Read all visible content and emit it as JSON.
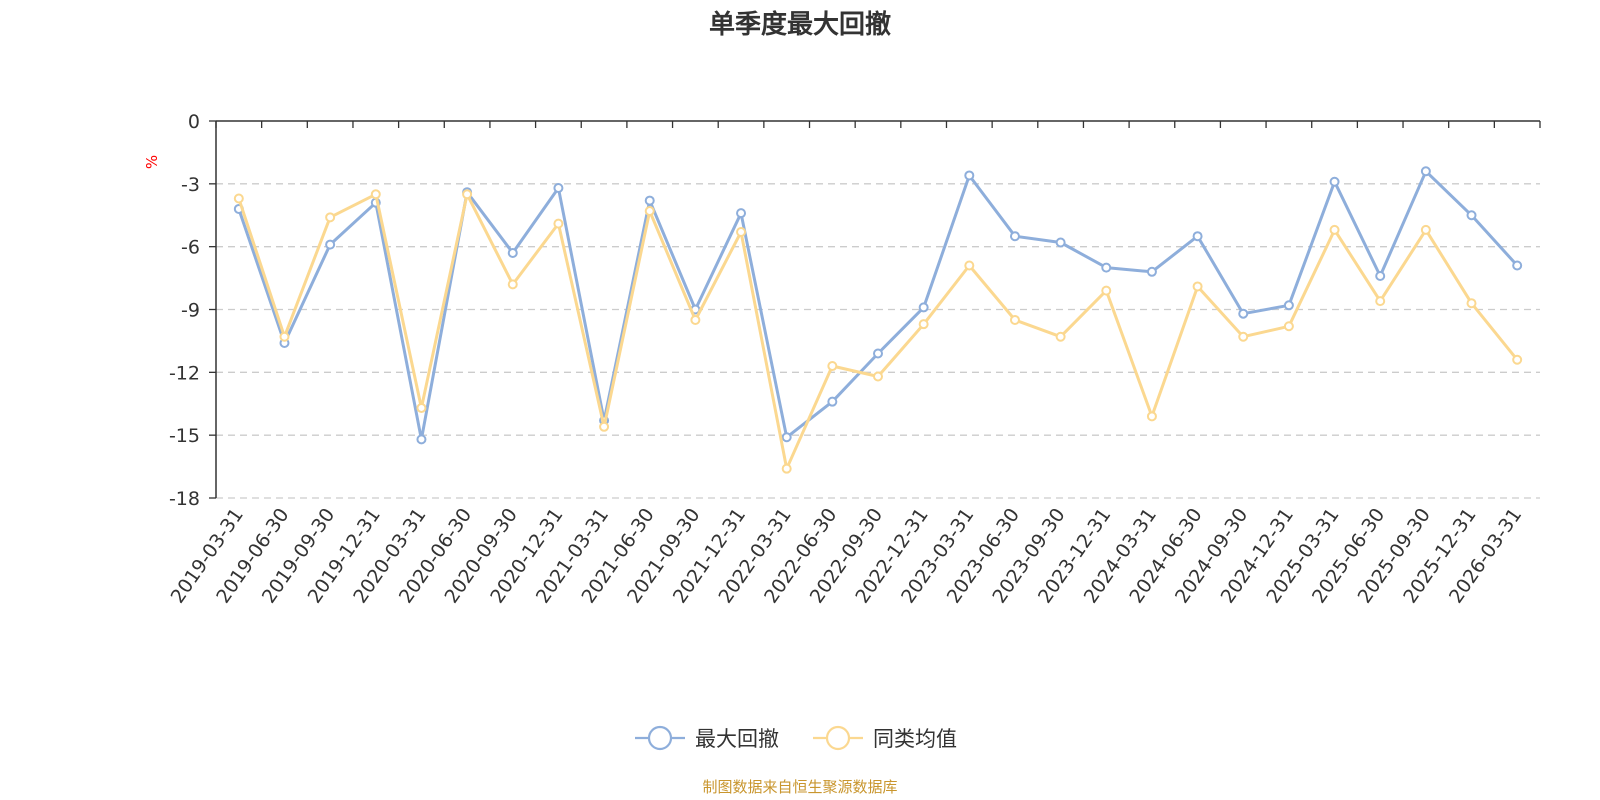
{
  "chart_data": {
    "type": "line",
    "title": "单季度最大回撤",
    "ylabel": "%",
    "xlabel": "",
    "ylim": [
      -18,
      0
    ],
    "yticks": [
      0,
      -3,
      -6,
      -9,
      -12,
      -15,
      -18
    ],
    "grid": true,
    "legend_position": "bottom-center",
    "categories": [
      "2019-03-31",
      "2019-06-30",
      "2019-09-30",
      "2019-12-31",
      "2020-03-31",
      "2020-06-30",
      "2020-09-30",
      "2020-12-31",
      "2021-03-31",
      "2021-06-30",
      "2021-09-30",
      "2021-12-31",
      "2022-03-31",
      "2022-06-30",
      "2022-09-30",
      "2022-12-31",
      "2023-03-31",
      "2023-06-30",
      "2023-09-30",
      "2023-12-31",
      "2024-03-31",
      "2024-06-30",
      "2024-09-30",
      "2024-12-31",
      "2025-03-31",
      "2025-06-30",
      "2025-09-30",
      "2025-12-31",
      "2026-03-31"
    ],
    "series": [
      {
        "name": "最大回撤",
        "color": "#8eaedb",
        "values": [
          -4.2,
          -10.6,
          -5.9,
          -3.9,
          -15.2,
          -3.4,
          -6.3,
          -3.2,
          -14.3,
          -3.8,
          -9.0,
          -4.4,
          -15.1,
          -13.4,
          -11.1,
          -8.9,
          -2.6,
          -5.5,
          -5.8,
          -7.0,
          -7.2,
          -5.5,
          -9.2,
          -8.8,
          -2.9,
          -7.4,
          -2.4,
          -4.5,
          -6.9
        ]
      },
      {
        "name": "同类均值",
        "color": "#fbd890",
        "values": [
          -3.7,
          -10.3,
          -4.6,
          -3.5,
          -13.7,
          -3.5,
          -7.8,
          -4.9,
          -14.6,
          -4.3,
          -9.5,
          -5.3,
          -16.6,
          -11.7,
          -12.2,
          -9.7,
          -6.9,
          -9.5,
          -10.3,
          -8.1,
          -14.1,
          -7.9,
          -10.3,
          -9.8,
          -5.2,
          -8.6,
          -5.2,
          -8.7,
          -11.4
        ]
      }
    ],
    "source": "制图数据来自恒生聚源数据库"
  }
}
